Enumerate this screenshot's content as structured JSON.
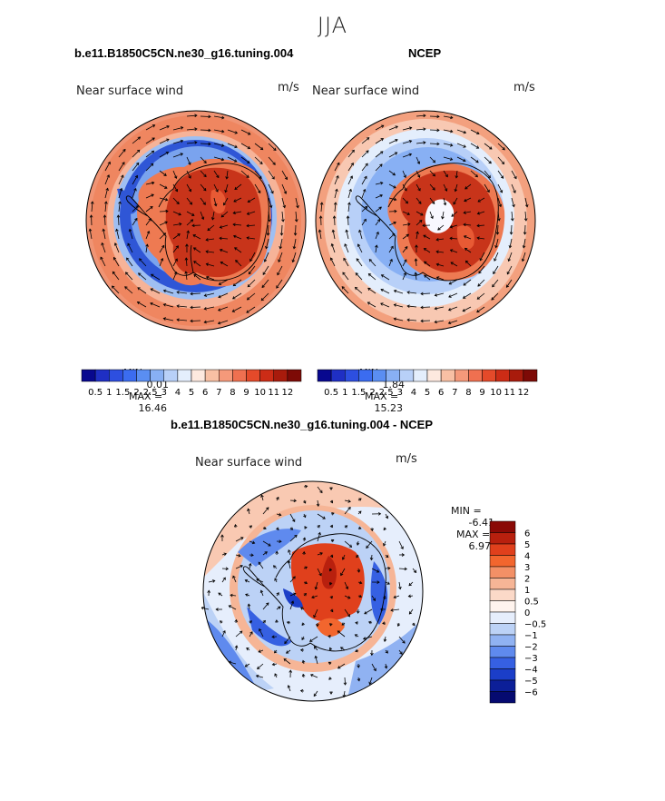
{
  "title": "JJA",
  "panels": [
    {
      "id": "model",
      "title": "b.e11.B1850C5CN.ne30_g16.tuning.004",
      "field_label": "Near surface wind",
      "units": "m/s",
      "min_label": "MIN =",
      "min_value": "0.01",
      "max_label": "MAX =",
      "max_value": "16.46"
    },
    {
      "id": "obs",
      "title": "NCEP",
      "field_label": "Near surface wind",
      "units": "m/s",
      "min_label": "MIN =",
      "min_value": "1.84",
      "max_label": "MAX =",
      "max_value": "15.23"
    },
    {
      "id": "diff",
      "title": "b.e11.B1850C5CN.ne30_g16.tuning.004 - NCEP",
      "field_label": "Near surface wind",
      "units": "m/s",
      "min_label": "MIN =",
      "min_value": "-6.41",
      "max_label": "MAX =",
      "max_value": "6.97"
    }
  ],
  "speed_colorbar": {
    "labels": [
      "0.5",
      "1",
      "1.5",
      "2",
      "2.5",
      "3",
      "4",
      "5",
      "6",
      "7",
      "8",
      "9",
      "10",
      "11",
      "12"
    ],
    "colors": [
      "#08088f",
      "#1f2fc4",
      "#2d4fe0",
      "#3b6cf0",
      "#5a8ef2",
      "#88b0f4",
      "#b8d0f8",
      "#e4eefc",
      "#fde9df",
      "#f8c0a4",
      "#f5997a",
      "#ef7050",
      "#e44a2a",
      "#cc2c16",
      "#a81b0c",
      "#7d0a06"
    ]
  },
  "diff_colorbar": {
    "labels": [
      "6",
      "5",
      "4",
      "3",
      "2",
      "1",
      "0.5",
      "0",
      "−0.5",
      "−1",
      "−2",
      "−3",
      "−4",
      "−5",
      "−6"
    ],
    "colors": [
      "#8a0a06",
      "#b8200e",
      "#e0401c",
      "#f2662e",
      "#f39066",
      "#f6b596",
      "#fbd9c8",
      "#fff4ee",
      "#e6eefc",
      "#bcd2f6",
      "#90b2f2",
      "#5f8aee",
      "#3660e2",
      "#1b3ec8",
      "#0c1f98",
      "#050a70"
    ]
  },
  "map_colors": {
    "ocean_light": "#eaf1fb",
    "blue_band": "#2f56d6",
    "blue_mid": "#7aa3ee",
    "red_core": "#c8341a",
    "orange": "#ee7a52",
    "salmon": "#f6b398",
    "coast": "#000000"
  }
}
